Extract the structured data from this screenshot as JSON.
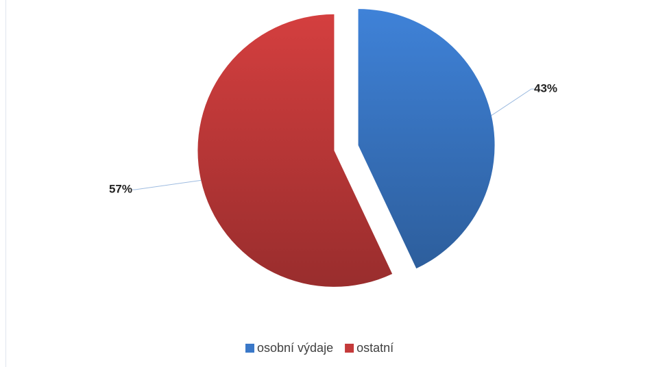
{
  "chart_data": {
    "type": "pie",
    "categories": [
      "osobní výdaje",
      "ostatní"
    ],
    "values": [
      43,
      57
    ],
    "value_labels": [
      "43%",
      "57%"
    ],
    "colors": [
      "#3a78c8",
      "#c43a3a"
    ],
    "legend": "bottom",
    "exploded": true
  }
}
